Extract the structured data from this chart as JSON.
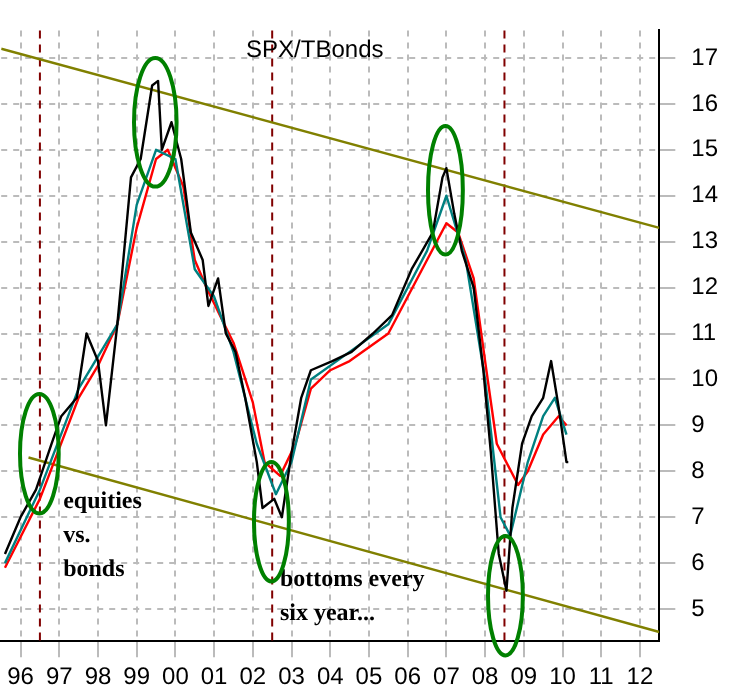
{
  "chart_data": {
    "type": "line",
    "title": "SPX/TBonds",
    "annotations": [
      "equities vs. bonds",
      "bottoms every six year..."
    ],
    "xlim": [
      "1996-01-01",
      "2013-01-01"
    ],
    "xticks": [
      {
        "value": "1996-07-01",
        "label": "96"
      },
      {
        "value": "1997-07-01",
        "label": "97"
      },
      {
        "value": "1998-07-01",
        "label": "98"
      },
      {
        "value": "1999-07-01",
        "label": "99"
      },
      {
        "value": "2000-07-01",
        "label": "00"
      },
      {
        "value": "2001-07-01",
        "label": "01"
      },
      {
        "value": "2002-07-01",
        "label": "02"
      },
      {
        "value": "2003-07-01",
        "label": "03"
      },
      {
        "value": "2004-07-01",
        "label": "04"
      },
      {
        "value": "2005-07-01",
        "label": "05"
      },
      {
        "value": "2006-07-01",
        "label": "06"
      },
      {
        "value": "2007-07-01",
        "label": "07"
      },
      {
        "value": "2008-07-01",
        "label": "08"
      },
      {
        "value": "2009-07-01",
        "label": "09"
      },
      {
        "value": "2010-07-01",
        "label": "10"
      },
      {
        "value": "2011-07-01",
        "label": "11"
      },
      {
        "value": "2012-07-01",
        "label": "12"
      }
    ],
    "ylim": [
      4.3,
      17.6
    ],
    "yticks": [
      5,
      6,
      7,
      8,
      9,
      10,
      11,
      12,
      13,
      14,
      15,
      16,
      17
    ],
    "grid": true,
    "legend": false,
    "marker": "none",
    "line_style": "solid",
    "ref_lines": [
      {
        "axis": "x",
        "value": "1997-01-01",
        "color": "#800000",
        "line_style": "dashed"
      },
      {
        "axis": "x",
        "value": "2003-01-01",
        "color": "#800000",
        "line_style": "dashed"
      },
      {
        "axis": "x",
        "value": "2009-01-01",
        "color": "#800000",
        "line_style": "dashed"
      }
    ],
    "series": [
      {
        "color": "#000000",
        "x": [
          "1996-02-06",
          "1996-07-01",
          "1996-11-25",
          "1997-04-20",
          "1997-07-20",
          "1997-12-15",
          "1998-03-15",
          "1998-07-01",
          "1998-09-15",
          "1999-01-01",
          "1999-05-08",
          "1999-08-08",
          "1999-11-25",
          "2000-01-20",
          "2000-02-25",
          "2000-05-25",
          "2000-08-25",
          "2000-11-25",
          "2001-03-15",
          "2001-05-08",
          "2001-08-08",
          "2001-10-20",
          "2002-01-20",
          "2002-04-20",
          "2002-08-08",
          "2002-10-01",
          "2003-01-20",
          "2003-04-01",
          "2003-07-01",
          "2003-10-01",
          "2004-01-01",
          "2004-07-20",
          "2005-01-20",
          "2005-08-08",
          "2006-02-06",
          "2006-08-08",
          "2007-02-25",
          "2007-05-25",
          "2007-07-01",
          "2007-09-15",
          "2007-11-25",
          "2008-03-15",
          "2008-06-15",
          "2008-08-25",
          "2008-11-08",
          "2009-01-20",
          "2009-03-15",
          "2009-06-15",
          "2009-09-15",
          "2010-01-01",
          "2010-03-15",
          "2010-05-25",
          "2010-08-08",
          "2010-08-25"
        ],
        "values": [
          6.2,
          7.0,
          7.6,
          8.6,
          9.2,
          9.6,
          11.0,
          10.4,
          9.0,
          11.2,
          14.4,
          14.8,
          16.4,
          16.5,
          15.0,
          15.6,
          14.8,
          13.2,
          12.6,
          11.6,
          12.2,
          11.0,
          10.6,
          9.6,
          8.2,
          7.2,
          7.4,
          7.0,
          8.4,
          9.6,
          10.2,
          10.4,
          10.6,
          11.0,
          11.4,
          12.4,
          13.2,
          14.4,
          14.6,
          13.6,
          12.8,
          12.0,
          10.2,
          8.4,
          6.2,
          5.4,
          7.2,
          8.6,
          9.2,
          9.6,
          10.4,
          9.4,
          8.2,
          8.2
        ]
      },
      {
        "color": "#008080",
        "x": [
          "1996-02-06",
          "1997-01-01",
          "1998-01-01",
          "1999-01-01",
          "1999-07-01",
          "2000-01-01",
          "2000-07-01",
          "2001-01-01",
          "2001-07-01",
          "2002-01-01",
          "2002-08-08",
          "2003-02-06",
          "2003-07-01",
          "2004-01-01",
          "2005-01-01",
          "2006-01-01",
          "2007-01-01",
          "2007-07-01",
          "2008-01-01",
          "2008-07-01",
          "2008-11-25",
          "2009-02-25",
          "2009-08-08",
          "2010-01-01",
          "2010-04-20",
          "2010-08-08"
        ],
        "values": [
          6.0,
          7.6,
          9.8,
          11.2,
          13.8,
          15.0,
          14.8,
          12.4,
          11.8,
          10.6,
          8.6,
          7.5,
          8.2,
          10.0,
          10.6,
          11.2,
          12.8,
          14.0,
          12.6,
          10.0,
          7.0,
          6.6,
          8.2,
          9.2,
          9.6,
          8.8
        ]
      },
      {
        "color": "#ff0000",
        "x": [
          "1996-02-06",
          "1997-01-01",
          "1997-07-01",
          "1998-01-01",
          "1998-07-01",
          "1999-01-01",
          "1999-07-01",
          "2000-01-01",
          "2000-04-20",
          "2000-09-15",
          "2001-01-01",
          "2001-04-20",
          "2001-09-15",
          "2002-01-01",
          "2002-07-01",
          "2002-10-20",
          "2003-03-15",
          "2003-08-08",
          "2004-01-01",
          "2004-07-01",
          "2005-01-01",
          "2005-07-01",
          "2006-01-01",
          "2006-07-01",
          "2007-01-01",
          "2007-07-01",
          "2007-10-20",
          "2008-03-15",
          "2008-07-01",
          "2008-10-20",
          "2009-05-08",
          "2009-08-08",
          "2010-01-01",
          "2010-05-25",
          "2010-08-08"
        ],
        "values": [
          5.9,
          7.4,
          8.5,
          9.6,
          10.3,
          11.2,
          13.3,
          14.8,
          15.0,
          14.2,
          12.6,
          12.0,
          11.3,
          10.8,
          9.5,
          8.2,
          7.9,
          8.6,
          9.8,
          10.2,
          10.4,
          10.7,
          11.0,
          11.8,
          12.6,
          13.4,
          13.2,
          12.2,
          10.4,
          8.6,
          7.7,
          8.0,
          8.8,
          9.2,
          9.0
        ]
      },
      {
        "type": "line",
        "color": "#808000",
        "x": [
          "1996-01-01",
          "2013-01-01"
        ],
        "values": [
          17.2,
          13.3
        ]
      },
      {
        "type": "line",
        "color": "#808000",
        "x": [
          "1996-09-15",
          "2013-01-01"
        ],
        "values": [
          8.3,
          4.5
        ]
      }
    ]
  }
}
